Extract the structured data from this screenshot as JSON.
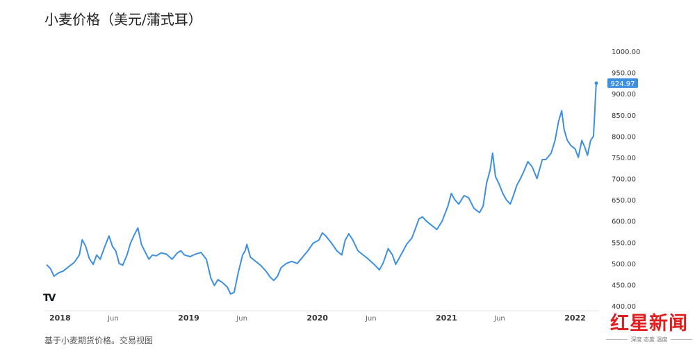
{
  "page": {
    "title": "小麦价格（美元/蒲式耳）",
    "caption": "基于小麦期货价格。交易视图",
    "watermark": {
      "brand": "红星新闻",
      "slogan": "深度 态度 温度"
    },
    "chart_logo": "TV"
  },
  "chart_data": {
    "type": "line",
    "title": "小麦价格（美元/蒲式耳）",
    "xlabel": "",
    "ylabel": "",
    "x_range": [
      "2017-11",
      "2022-03"
    ],
    "ylim": [
      400,
      1000
    ],
    "y_axis_position": "right",
    "grid": false,
    "legend": "none",
    "line_color": "#3d8fe0",
    "x_ticks": [
      "2018",
      "Jun",
      "2019",
      "Jun",
      "2020",
      "Jun",
      "2021",
      "Jun",
      "2022"
    ],
    "y_ticks": [
      "400.00",
      "450.00",
      "500.00",
      "550.00",
      "600.00",
      "650.00",
      "700.00",
      "750.00",
      "800.00",
      "850.00",
      "900.00",
      "950.00",
      "1000.00"
    ],
    "last_value_label": "924.97",
    "series": [
      {
        "values": [
          [
            "2017-11-24",
            497
          ],
          [
            "2017-12-05",
            488
          ],
          [
            "2017-12-15",
            470
          ],
          [
            "2017-12-28",
            478
          ],
          [
            "2018-01-10",
            482
          ],
          [
            "2018-01-25",
            492
          ],
          [
            "2018-02-10",
            502
          ],
          [
            "2018-02-25",
            520
          ],
          [
            "2018-03-05",
            556
          ],
          [
            "2018-03-15",
            540
          ],
          [
            "2018-03-25",
            512
          ],
          [
            "2018-04-05",
            498
          ],
          [
            "2018-04-15",
            520
          ],
          [
            "2018-04-25",
            510
          ],
          [
            "2018-05-08",
            540
          ],
          [
            "2018-05-20",
            565
          ],
          [
            "2018-05-30",
            540
          ],
          [
            "2018-06-08",
            530
          ],
          [
            "2018-06-18",
            500
          ],
          [
            "2018-06-28",
            496
          ],
          [
            "2018-07-10",
            520
          ],
          [
            "2018-07-20",
            548
          ],
          [
            "2018-07-31",
            568
          ],
          [
            "2018-08-10",
            584
          ],
          [
            "2018-08-20",
            545
          ],
          [
            "2018-08-30",
            528
          ],
          [
            "2018-09-10",
            510
          ],
          [
            "2018-09-20",
            520
          ],
          [
            "2018-10-01",
            518
          ],
          [
            "2018-10-15",
            525
          ],
          [
            "2018-10-30",
            522
          ],
          [
            "2018-11-15",
            510
          ],
          [
            "2018-11-30",
            525
          ],
          [
            "2018-12-10",
            530
          ],
          [
            "2018-12-20",
            520
          ],
          [
            "2019-01-05",
            516
          ],
          [
            "2019-01-20",
            522
          ],
          [
            "2019-02-05",
            526
          ],
          [
            "2019-02-20",
            510
          ],
          [
            "2019-03-05",
            465
          ],
          [
            "2019-03-15",
            448
          ],
          [
            "2019-03-25",
            462
          ],
          [
            "2019-04-05",
            456
          ],
          [
            "2019-04-20",
            445
          ],
          [
            "2019-04-30",
            428
          ],
          [
            "2019-05-10",
            432
          ],
          [
            "2019-05-22",
            480
          ],
          [
            "2019-06-03",
            520
          ],
          [
            "2019-06-10",
            530
          ],
          [
            "2019-06-15",
            545
          ],
          [
            "2019-06-25",
            515
          ],
          [
            "2019-07-10",
            505
          ],
          [
            "2019-07-25",
            495
          ],
          [
            "2019-08-10",
            480
          ],
          [
            "2019-08-20",
            468
          ],
          [
            "2019-08-30",
            460
          ],
          [
            "2019-09-10",
            470
          ],
          [
            "2019-09-20",
            490
          ],
          [
            "2019-10-05",
            500
          ],
          [
            "2019-10-20",
            505
          ],
          [
            "2019-11-05",
            500
          ],
          [
            "2019-11-20",
            515
          ],
          [
            "2019-12-05",
            530
          ],
          [
            "2019-12-20",
            548
          ],
          [
            "2020-01-05",
            555
          ],
          [
            "2020-01-15",
            572
          ],
          [
            "2020-01-25",
            565
          ],
          [
            "2020-02-10",
            548
          ],
          [
            "2020-02-25",
            530
          ],
          [
            "2020-03-10",
            520
          ],
          [
            "2020-03-20",
            555
          ],
          [
            "2020-03-30",
            570
          ],
          [
            "2020-04-10",
            556
          ],
          [
            "2020-04-25",
            530
          ],
          [
            "2020-05-10",
            520
          ],
          [
            "2020-05-25",
            510
          ],
          [
            "2020-06-10",
            498
          ],
          [
            "2020-06-25",
            485
          ],
          [
            "2020-07-05",
            500
          ],
          [
            "2020-07-20",
            535
          ],
          [
            "2020-08-01",
            520
          ],
          [
            "2020-08-10",
            498
          ],
          [
            "2020-08-25",
            520
          ],
          [
            "2020-09-10",
            545
          ],
          [
            "2020-09-25",
            560
          ],
          [
            "2020-10-05",
            582
          ],
          [
            "2020-10-15",
            605
          ],
          [
            "2020-10-25",
            610
          ],
          [
            "2020-11-05",
            600
          ],
          [
            "2020-11-20",
            590
          ],
          [
            "2020-12-05",
            580
          ],
          [
            "2020-12-20",
            600
          ],
          [
            "2021-01-05",
            635
          ],
          [
            "2021-01-15",
            665
          ],
          [
            "2021-01-25",
            650
          ],
          [
            "2021-02-05",
            640
          ],
          [
            "2021-02-20",
            660
          ],
          [
            "2021-03-05",
            655
          ],
          [
            "2021-03-20",
            630
          ],
          [
            "2021-04-05",
            620
          ],
          [
            "2021-04-15",
            635
          ],
          [
            "2021-04-25",
            690
          ],
          [
            "2021-05-05",
            720
          ],
          [
            "2021-05-12",
            760
          ],
          [
            "2021-05-20",
            705
          ],
          [
            "2021-05-30",
            688
          ],
          [
            "2021-06-10",
            665
          ],
          [
            "2021-06-20",
            650
          ],
          [
            "2021-07-01",
            640
          ],
          [
            "2021-07-10",
            660
          ],
          [
            "2021-07-20",
            685
          ],
          [
            "2021-07-30",
            700
          ],
          [
            "2021-08-10",
            720
          ],
          [
            "2021-08-20",
            740
          ],
          [
            "2021-09-01",
            728
          ],
          [
            "2021-09-15",
            700
          ],
          [
            "2021-09-30",
            745
          ],
          [
            "2021-10-10",
            745
          ],
          [
            "2021-10-25",
            760
          ],
          [
            "2021-11-05",
            790
          ],
          [
            "2021-11-15",
            835
          ],
          [
            "2021-11-24",
            860
          ],
          [
            "2021-12-01",
            815
          ],
          [
            "2021-12-10",
            790
          ],
          [
            "2021-12-20",
            778
          ],
          [
            "2022-01-01",
            770
          ],
          [
            "2022-01-10",
            750
          ],
          [
            "2022-01-20",
            790
          ],
          [
            "2022-01-28",
            775
          ],
          [
            "2022-02-05",
            755
          ],
          [
            "2022-02-14",
            790
          ],
          [
            "2022-02-22",
            800
          ],
          [
            "2022-02-25",
            845
          ],
          [
            "2022-02-28",
            895
          ],
          [
            "2022-03-02",
            924.97
          ]
        ]
      }
    ]
  }
}
